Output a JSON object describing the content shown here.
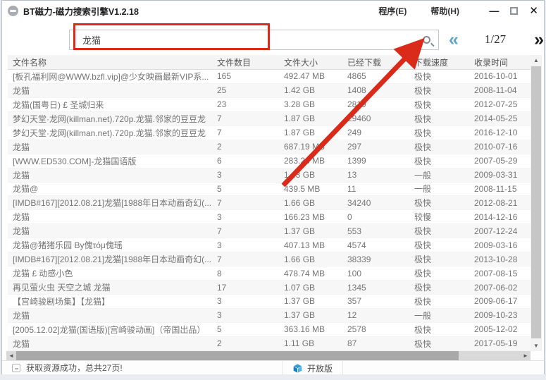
{
  "window": {
    "title": "BT磁力-磁力搜索引擎V1.2.18",
    "menu": [
      {
        "label": "程序(E)"
      },
      {
        "label": "帮助(H)"
      }
    ],
    "controls": {
      "minimize": "—",
      "close": "✕"
    }
  },
  "search": {
    "value": "龙猫",
    "placeholder": ""
  },
  "pagination": {
    "prev": "«",
    "current": "1/27",
    "next": "»"
  },
  "table": {
    "headers": [
      "文件名称",
      "文件数目",
      "文件大小",
      "已经下载",
      "下载速度",
      "收录时间"
    ],
    "rows": [
      {
        "name": "[板孔福利网@WWW.bzfl.vip]@少女映画最新VIP系...",
        "count": "165",
        "size": "492.47 MB",
        "downloads": "4865",
        "speed": "极快",
        "date": "2016-10-01"
      },
      {
        "name": "龙猫",
        "count": "25",
        "size": "1.42 GB",
        "downloads": "1408",
        "speed": "极快",
        "date": "2008-11-04"
      },
      {
        "name": "龙猫(国粤日) £ 圣城归来",
        "count": "23",
        "size": "3.28 GB",
        "downloads": "2819",
        "speed": "极快",
        "date": "2012-07-25"
      },
      {
        "name": "梦幻天堂·龙网(killman.net).720p.龙猫.邻家的豆豆龙",
        "count": "7",
        "size": "1.87 GB",
        "downloads": "29460",
        "speed": "极快",
        "date": "2014-05-25"
      },
      {
        "name": "梦幻天堂·龙网(killman.net).720p.龙猫.邻家的豆豆龙",
        "count": "7",
        "size": "1.87 GB",
        "downloads": "249",
        "speed": "极快",
        "date": "2016-12-10"
      },
      {
        "name": "龙猫",
        "count": "2",
        "size": "687.19 MB",
        "downloads": "297",
        "speed": "极快",
        "date": "2010-07-16"
      },
      {
        "name": "[WWW.ED530.COM]-龙猫国语版",
        "count": "6",
        "size": "283.28 MB",
        "downloads": "1399",
        "speed": "极快",
        "date": "2007-05-29"
      },
      {
        "name": "龙猫",
        "count": "3",
        "size": "1.43 GB",
        "downloads": "13",
        "speed": "一般",
        "date": "2009-03-31"
      },
      {
        "name": "龙猫@",
        "count": "5",
        "size": "439.5 MB",
        "downloads": "11",
        "speed": "一般",
        "date": "2008-11-15"
      },
      {
        "name": "[IMDB#167][2012.08.21]龙猫[1988年日本动画奇幻(...",
        "count": "7",
        "size": "1.66 GB",
        "downloads": "34240",
        "speed": "极快",
        "date": "2012-08-21"
      },
      {
        "name": "龙猫",
        "count": "3",
        "size": "166.23 MB",
        "downloads": "0",
        "speed": "较慢",
        "date": "2014-12-16"
      },
      {
        "name": "龙猫",
        "count": "7",
        "size": "1.37 GB",
        "downloads": "553",
        "speed": "极快",
        "date": "2007-12-24"
      },
      {
        "name": "龙猫@猪猪乐园 By傀τόμ傀瑶",
        "count": "3",
        "size": "407.13 MB",
        "downloads": "4574",
        "speed": "极快",
        "date": "2009-03-16"
      },
      {
        "name": "[IMDB#167][2012.08.21]龙猫[1988年日本动画奇幻(...",
        "count": "7",
        "size": "1.66 GB",
        "downloads": "38339",
        "speed": "极快",
        "date": "2013-10-28"
      },
      {
        "name": "龙猫 £ 动感小色",
        "count": "8",
        "size": "478.74 MB",
        "downloads": "100",
        "speed": "极快",
        "date": "2007-08-15"
      },
      {
        "name": "再见萤火虫 天空之城 龙猫",
        "count": "17",
        "size": "1.07 GB",
        "downloads": "1345",
        "speed": "极快",
        "date": "2007-06-02"
      },
      {
        "name": "【宫崎骏剧场集】【龙猫】",
        "count": "3",
        "size": "1.37 GB",
        "downloads": "357",
        "speed": "极快",
        "date": "2009-06-17"
      },
      {
        "name": "龙猫",
        "count": "3",
        "size": "1.37 GB",
        "downloads": "12",
        "speed": "一般",
        "date": "2009-10-23"
      },
      {
        "name": "[2005.12.02]龙猫(国语版)[宫崎骏动画]（帝国出品）",
        "count": "5",
        "size": "363.16 MB",
        "downloads": "2578",
        "speed": "极快",
        "date": "2005-12-02"
      },
      {
        "name": "龙猫",
        "count": "2",
        "size": "1.11 GB",
        "downloads": "87",
        "speed": "极快",
        "date": "2017-05-19"
      }
    ]
  },
  "statusbar": {
    "message": "获取资源成功，总共27页!",
    "edition": "开放版"
  },
  "colors": {
    "annotation_red": "#d92a1a",
    "pager_prev_blue": "#5ba5c6",
    "cube_blue": "#2e9bd6"
  }
}
